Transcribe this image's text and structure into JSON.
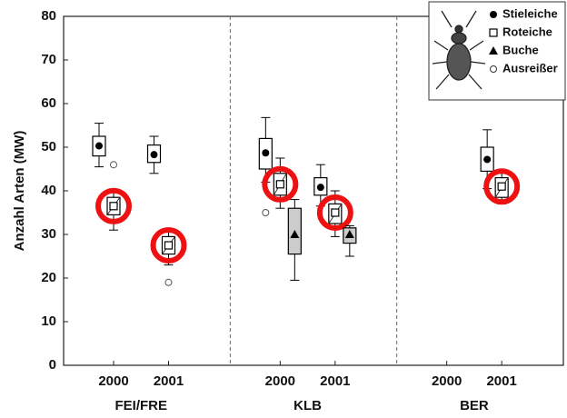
{
  "chart_data": {
    "type": "box",
    "ylabel": "Anzahl Arten (MW)",
    "ylim": [
      0,
      80
    ],
    "yticks": [
      0,
      10,
      20,
      30,
      40,
      50,
      60,
      70,
      80
    ],
    "groups": [
      {
        "name": "FEI/FRE",
        "years": [
          "2000",
          "2001"
        ]
      },
      {
        "name": "KLB",
        "years": [
          "2000",
          "2001"
        ]
      },
      {
        "name": "BER",
        "years": [
          "2000",
          "2001"
        ]
      }
    ],
    "outlier_label": "Ausreißer",
    "series": [
      {
        "name": "Stieleiche",
        "marker": "circle",
        "color": "#000000",
        "values": [
          {
            "min": 45.5,
            "q1": 48,
            "median": 50.3,
            "q3": 52.5,
            "max": 55.5,
            "outliers": []
          },
          {
            "min": 44,
            "q1": 46.5,
            "median": 48.3,
            "q3": 50.5,
            "max": 52.5,
            "outliers": []
          },
          {
            "min": 42,
            "q1": 45,
            "median": 48.7,
            "q3": 52,
            "max": 56.8,
            "outliers": [
              35
            ]
          },
          {
            "min": 36.5,
            "q1": 39,
            "median": 40.8,
            "q3": 43,
            "max": 46,
            "outliers": []
          },
          null,
          {
            "min": 40.5,
            "q1": 44.5,
            "median": 47.2,
            "q3": 50,
            "max": 54,
            "outliers": []
          }
        ]
      },
      {
        "name": "Roteiche",
        "marker": "square",
        "color": "#000000",
        "highlight": "#ee1111",
        "values": [
          {
            "min": 31,
            "q1": 34.5,
            "median": 36.5,
            "q3": 38.5,
            "max": 40,
            "outliers": [
              46
            ]
          },
          {
            "min": 23,
            "q1": 25.5,
            "median": 27.5,
            "q3": 29.5,
            "max": 30.5,
            "outliers": [
              19
            ]
          },
          {
            "min": 36,
            "q1": 39,
            "median": 41.5,
            "q3": 44,
            "max": 47.5,
            "outliers": []
          },
          {
            "min": 29.5,
            "q1": 32.5,
            "median": 35,
            "q3": 37,
            "max": 40,
            "outliers": []
          },
          null,
          {
            "min": 37,
            "q1": 38.5,
            "median": 41,
            "q3": 43,
            "max": 44,
            "outliers": []
          }
        ]
      },
      {
        "name": "Buche",
        "marker": "triangle",
        "color": "#000000",
        "values": [
          null,
          null,
          {
            "min": 19.5,
            "q1": 25.5,
            "median": 30,
            "q3": 36,
            "max": 38,
            "outliers": []
          },
          {
            "min": 25,
            "q1": 28,
            "median": 30,
            "q3": 31.5,
            "max": 32,
            "outliers": []
          },
          null,
          null
        ]
      }
    ]
  }
}
